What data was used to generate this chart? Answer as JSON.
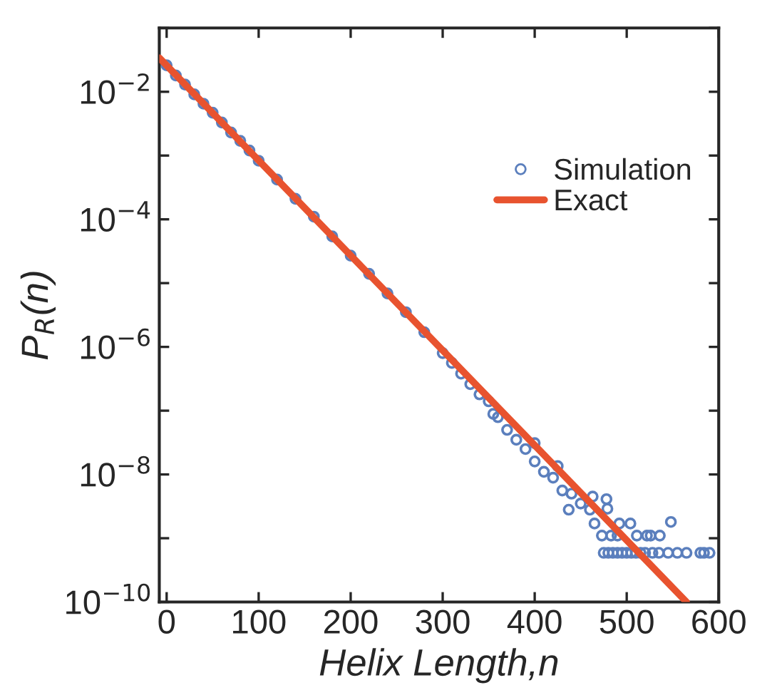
{
  "chart_data": {
    "type": "scatter",
    "xlabel": "Helix Length,n",
    "ylabel": "P$_{R}$(n)",
    "log": "y",
    "xlim": [
      -8,
      600
    ],
    "ylim": [
      1e-10,
      0.1
    ],
    "xticks": [
      0,
      100,
      200,
      300,
      400,
      500,
      600
    ],
    "yticks": [
      {
        "value": 0.1,
        "label": null
      },
      {
        "value": 0.01,
        "label": "10$^{−2}$"
      },
      {
        "value": 0.001,
        "label": null
      },
      {
        "value": 0.0001,
        "label": "10$^{−4}$"
      },
      {
        "value": 1e-05,
        "label": null
      },
      {
        "value": 1e-06,
        "label": "10$^{−6}$"
      },
      {
        "value": 1e-07,
        "label": null
      },
      {
        "value": 1e-08,
        "label": "10$^{−8}$"
      },
      {
        "value": 1e-09,
        "label": null
      },
      {
        "value": 1e-10,
        "label": "10$^{−10}$"
      }
    ],
    "grid": false,
    "legend": "top right",
    "series": [
      {
        "name": "Simulation",
        "marker": "circle",
        "color": "#5b7fbd",
        "x": [
          0,
          10,
          20,
          30,
          40,
          50,
          60,
          70,
          80,
          90,
          100,
          120,
          140,
          160,
          180,
          200,
          220,
          240,
          260,
          280,
          300,
          310,
          320,
          330,
          340,
          350,
          355,
          360,
          370,
          380,
          390,
          400,
          400,
          410,
          420,
          425,
          430,
          440,
          437,
          450,
          460,
          463,
          478,
          479,
          465,
          492,
          504,
          548,
          473,
          483,
          490,
          511,
          522,
          526,
          536,
          475,
          480,
          485,
          490,
          495,
          500,
          505,
          510,
          515,
          520,
          528,
          535,
          545,
          555,
          565,
          580,
          584,
          590
        ],
        "values": [
          0.026,
          0.018,
          0.013,
          0.0091,
          0.0065,
          0.0047,
          0.0033,
          0.0023,
          0.0017,
          0.0012,
          0.00083,
          0.00042,
          0.00021,
          0.00011,
          5.4e-05,
          2.7e-05,
          1.4e-05,
          6.9e-06,
          3.5e-06,
          1.7e-06,
          8e-07,
          5.6e-07,
          3.8e-07,
          2.6e-07,
          1.8e-07,
          1.4e-07,
          8.9e-08,
          7.9e-08,
          5e-08,
          3.5e-08,
          2.5e-08,
          3.1e-08,
          1.6e-08,
          1.1e-08,
          8.9e-09,
          1.35e-08,
          5.6e-09,
          5e-09,
          2.8e-09,
          3.5e-09,
          2.8e-09,
          4.5e-09,
          4.1e-09,
          2.9e-09,
          1.7e-09,
          1.7e-09,
          1.7e-09,
          1.8e-09,
          1.1e-09,
          1.1e-09,
          1.1e-09,
          1.1e-09,
          1.1e-09,
          1.1e-09,
          1.1e-09,
          5.9e-10,
          5.9e-10,
          5.9e-10,
          5.9e-10,
          5.9e-10,
          5.9e-10,
          5.9e-10,
          5.9e-10,
          5.9e-10,
          5.9e-10,
          5.9e-10,
          5.9e-10,
          5.9e-10,
          5.9e-10,
          5.9e-10,
          5.9e-10,
          5.9e-10,
          5.9e-10
        ]
      },
      {
        "name": "Exact",
        "type": "line",
        "marker": "none",
        "color": "#e8532f",
        "line_style": "solid",
        "x": [
          -8,
          565
        ],
        "values": [
          0.034,
          1e-10
        ]
      }
    ]
  }
}
